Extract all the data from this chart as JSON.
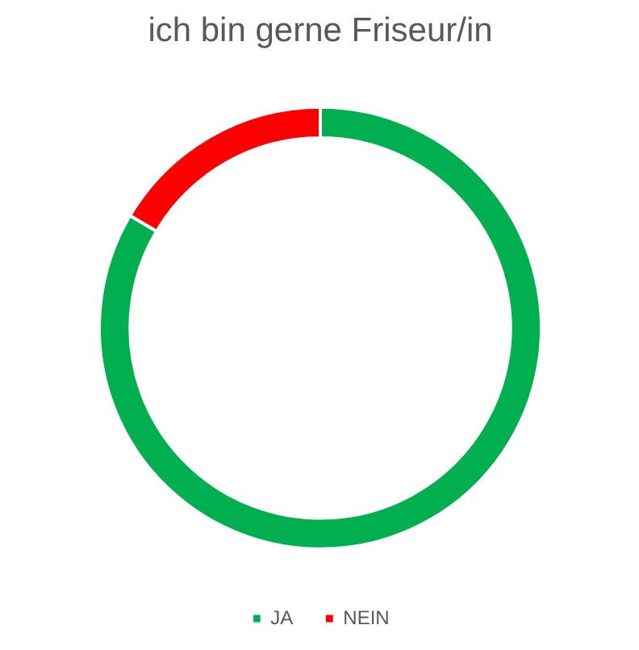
{
  "chart_data": {
    "type": "donut",
    "title": "ich bin gerne Friseur/in",
    "categories": [
      "JA",
      "NEIN"
    ],
    "values": [
      83.5,
      16.5
    ],
    "colors": [
      "#00b050",
      "#ff0000"
    ],
    "legend": "bottom"
  }
}
